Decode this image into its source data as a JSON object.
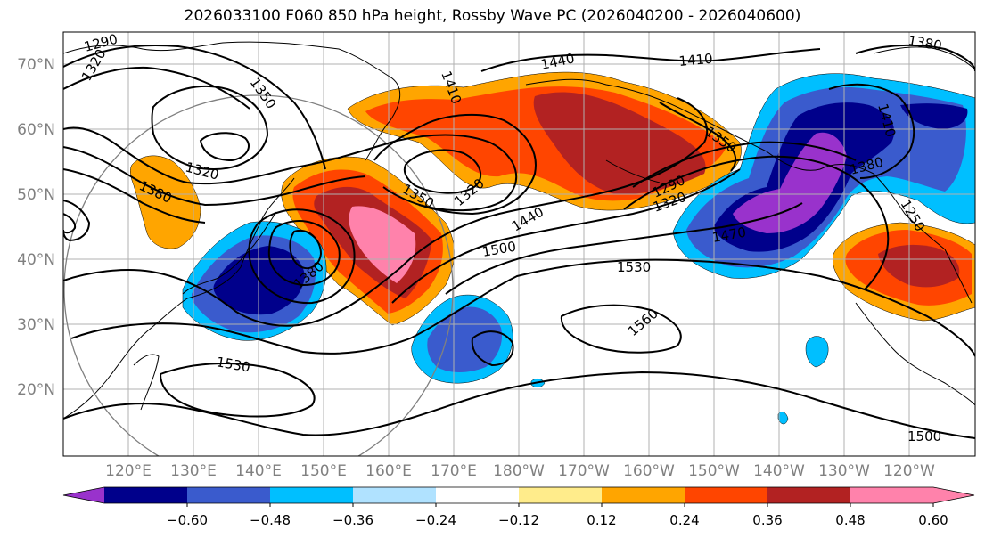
{
  "title": "2026033100 F060 850 hPa height, Rossby Wave PC (2026040200 - 2026040600)",
  "lat_labels": [
    "70°N",
    "60°N",
    "50°N",
    "40°N",
    "30°N",
    "20°N"
  ],
  "lon_labels": [
    "120°E",
    "130°E",
    "140°E",
    "150°E",
    "160°E",
    "170°E",
    "180°W",
    "170°W",
    "160°W",
    "150°W",
    "140°W",
    "130°W",
    "120°W"
  ],
  "contour_labels": [
    "1290",
    "1320",
    "1350",
    "1320",
    "1380",
    "1410",
    "1440",
    "1410",
    "1350",
    "1290",
    "1320",
    "1350",
    "1320",
    "1440",
    "1500",
    "1530",
    "1560",
    "1470",
    "1410",
    "1380",
    "1250",
    "1380",
    "1530",
    "1500",
    "1380"
  ],
  "colorbar": {
    "ticks": [
      "−0.60",
      "−0.48",
      "−0.36",
      "−0.24",
      "−0.12",
      "0.12",
      "0.24",
      "0.36",
      "0.48",
      "0.60"
    ],
    "colors": [
      "#9932cc",
      "#00008b",
      "#3a5bcd",
      "#00bfff",
      "#b0e2ff",
      "#ffffff",
      "#ffec8b",
      "#ffa500",
      "#ff4500",
      "#b22222",
      "#ff82ab",
      "#ff82ab"
    ]
  },
  "colors": {
    "grid": "#b0b0b0",
    "contour": "#000000",
    "axis_label": "#808080"
  }
}
